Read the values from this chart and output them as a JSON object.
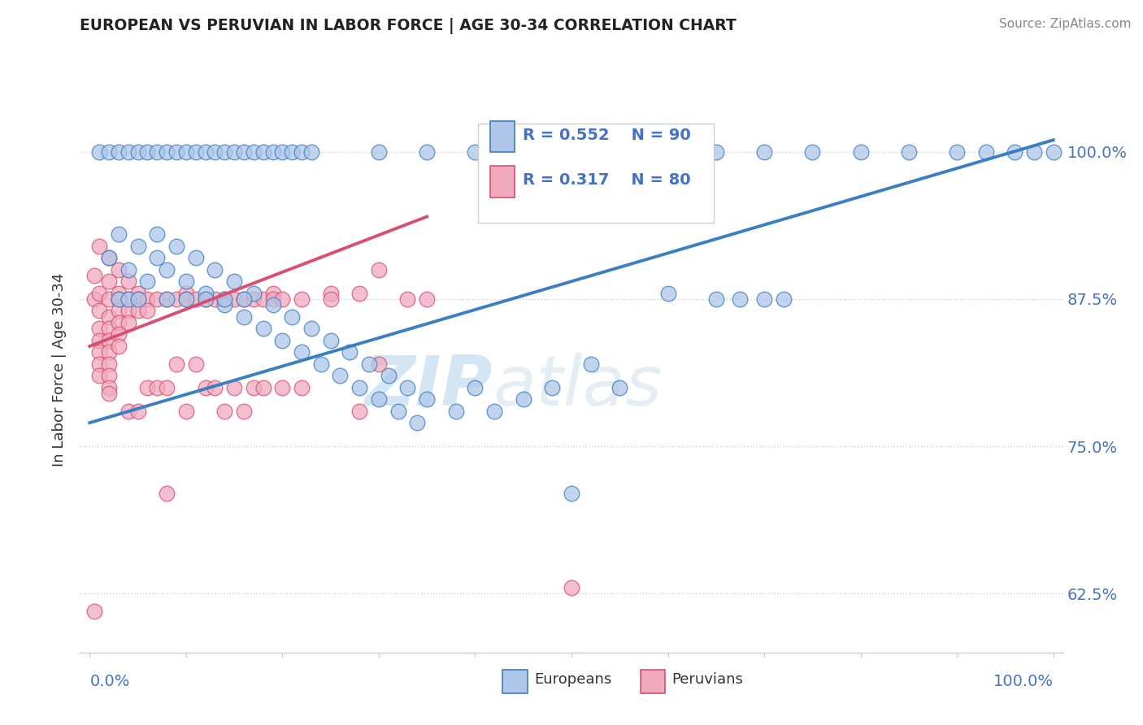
{
  "title": "EUROPEAN VS PERUVIAN IN LABOR FORCE | AGE 30-34 CORRELATION CHART",
  "source": "Source: ZipAtlas.com",
  "ylabel": "In Labor Force | Age 30-34",
  "ytick_labels": [
    "62.5%",
    "75.0%",
    "87.5%",
    "100.0%"
  ],
  "ytick_values": [
    0.625,
    0.75,
    0.875,
    1.0
  ],
  "xlim": [
    -0.01,
    1.01
  ],
  "ylim": [
    0.575,
    1.055
  ],
  "legend_r_european": "R = 0.552",
  "legend_n_european": "N = 90",
  "legend_r_peruvian": "R = 0.317",
  "legend_n_peruvian": "N = 80",
  "european_color": "#aec6e8",
  "peruvian_color": "#f0aabe",
  "trendline_european_color": "#3a7fc1",
  "trendline_peruvian_color": "#d94f70",
  "watermark_zip": "ZIP",
  "watermark_atlas": "atlas",
  "european_points": [
    [
      0.01,
      1.0
    ],
    [
      0.02,
      1.0
    ],
    [
      0.03,
      1.0
    ],
    [
      0.04,
      1.0
    ],
    [
      0.05,
      1.0
    ],
    [
      0.06,
      1.0
    ],
    [
      0.07,
      1.0
    ],
    [
      0.08,
      1.0
    ],
    [
      0.09,
      1.0
    ],
    [
      0.1,
      1.0
    ],
    [
      0.11,
      1.0
    ],
    [
      0.12,
      1.0
    ],
    [
      0.13,
      1.0
    ],
    [
      0.14,
      1.0
    ],
    [
      0.15,
      1.0
    ],
    [
      0.16,
      1.0
    ],
    [
      0.17,
      1.0
    ],
    [
      0.18,
      1.0
    ],
    [
      0.19,
      1.0
    ],
    [
      0.2,
      1.0
    ],
    [
      0.21,
      1.0
    ],
    [
      0.22,
      1.0
    ],
    [
      0.23,
      1.0
    ],
    [
      0.3,
      1.0
    ],
    [
      0.35,
      1.0
    ],
    [
      0.4,
      1.0
    ],
    [
      0.5,
      1.0
    ],
    [
      0.58,
      1.0
    ],
    [
      0.65,
      1.0
    ],
    [
      0.7,
      1.0
    ],
    [
      0.75,
      1.0
    ],
    [
      0.8,
      1.0
    ],
    [
      0.85,
      1.0
    ],
    [
      0.9,
      1.0
    ],
    [
      0.93,
      1.0
    ],
    [
      0.96,
      1.0
    ],
    [
      0.98,
      1.0
    ],
    [
      1.0,
      1.0
    ],
    [
      0.02,
      0.91
    ],
    [
      0.03,
      0.93
    ],
    [
      0.04,
      0.9
    ],
    [
      0.05,
      0.92
    ],
    [
      0.06,
      0.89
    ],
    [
      0.07,
      0.91
    ],
    [
      0.07,
      0.93
    ],
    [
      0.08,
      0.9
    ],
    [
      0.09,
      0.92
    ],
    [
      0.1,
      0.89
    ],
    [
      0.11,
      0.91
    ],
    [
      0.12,
      0.88
    ],
    [
      0.13,
      0.9
    ],
    [
      0.14,
      0.87
    ],
    [
      0.15,
      0.89
    ],
    [
      0.16,
      0.86
    ],
    [
      0.17,
      0.88
    ],
    [
      0.18,
      0.85
    ],
    [
      0.19,
      0.87
    ],
    [
      0.2,
      0.84
    ],
    [
      0.21,
      0.86
    ],
    [
      0.22,
      0.83
    ],
    [
      0.23,
      0.85
    ],
    [
      0.24,
      0.82
    ],
    [
      0.25,
      0.84
    ],
    [
      0.26,
      0.81
    ],
    [
      0.27,
      0.83
    ],
    [
      0.28,
      0.8
    ],
    [
      0.29,
      0.82
    ],
    [
      0.3,
      0.79
    ],
    [
      0.31,
      0.81
    ],
    [
      0.32,
      0.78
    ],
    [
      0.33,
      0.8
    ],
    [
      0.34,
      0.77
    ],
    [
      0.35,
      0.79
    ],
    [
      0.38,
      0.78
    ],
    [
      0.4,
      0.8
    ],
    [
      0.42,
      0.78
    ],
    [
      0.45,
      0.79
    ],
    [
      0.48,
      0.8
    ],
    [
      0.5,
      0.71
    ],
    [
      0.52,
      0.82
    ],
    [
      0.55,
      0.8
    ],
    [
      0.6,
      0.88
    ],
    [
      0.65,
      0.875
    ],
    [
      0.7,
      0.875
    ],
    [
      0.72,
      0.875
    ],
    [
      0.675,
      0.875
    ],
    [
      0.03,
      0.875
    ],
    [
      0.04,
      0.875
    ],
    [
      0.05,
      0.875
    ],
    [
      0.08,
      0.875
    ],
    [
      0.1,
      0.875
    ],
    [
      0.12,
      0.875
    ],
    [
      0.14,
      0.875
    ],
    [
      0.16,
      0.875
    ]
  ],
  "peruvian_points": [
    [
      0.005,
      0.61
    ],
    [
      0.005,
      0.875
    ],
    [
      0.005,
      0.895
    ],
    [
      0.01,
      0.92
    ],
    [
      0.01,
      0.88
    ],
    [
      0.01,
      0.865
    ],
    [
      0.01,
      0.85
    ],
    [
      0.01,
      0.84
    ],
    [
      0.01,
      0.83
    ],
    [
      0.01,
      0.82
    ],
    [
      0.01,
      0.81
    ],
    [
      0.02,
      0.91
    ],
    [
      0.02,
      0.89
    ],
    [
      0.02,
      0.875
    ],
    [
      0.02,
      0.86
    ],
    [
      0.02,
      0.85
    ],
    [
      0.02,
      0.84
    ],
    [
      0.02,
      0.83
    ],
    [
      0.02,
      0.82
    ],
    [
      0.02,
      0.81
    ],
    [
      0.02,
      0.8
    ],
    [
      0.02,
      0.795
    ],
    [
      0.03,
      0.9
    ],
    [
      0.03,
      0.88
    ],
    [
      0.03,
      0.875
    ],
    [
      0.03,
      0.865
    ],
    [
      0.03,
      0.855
    ],
    [
      0.03,
      0.845
    ],
    [
      0.03,
      0.835
    ],
    [
      0.04,
      0.89
    ],
    [
      0.04,
      0.875
    ],
    [
      0.04,
      0.865
    ],
    [
      0.04,
      0.855
    ],
    [
      0.04,
      0.78
    ],
    [
      0.05,
      0.88
    ],
    [
      0.05,
      0.875
    ],
    [
      0.05,
      0.865
    ],
    [
      0.05,
      0.78
    ],
    [
      0.06,
      0.875
    ],
    [
      0.06,
      0.865
    ],
    [
      0.06,
      0.8
    ],
    [
      0.07,
      0.875
    ],
    [
      0.07,
      0.8
    ],
    [
      0.08,
      0.875
    ],
    [
      0.08,
      0.8
    ],
    [
      0.08,
      0.71
    ],
    [
      0.09,
      0.875
    ],
    [
      0.09,
      0.82
    ],
    [
      0.1,
      0.88
    ],
    [
      0.1,
      0.875
    ],
    [
      0.1,
      0.78
    ],
    [
      0.11,
      0.875
    ],
    [
      0.11,
      0.82
    ],
    [
      0.12,
      0.875
    ],
    [
      0.12,
      0.8
    ],
    [
      0.13,
      0.875
    ],
    [
      0.13,
      0.8
    ],
    [
      0.14,
      0.875
    ],
    [
      0.14,
      0.78
    ],
    [
      0.15,
      0.875
    ],
    [
      0.15,
      0.8
    ],
    [
      0.16,
      0.875
    ],
    [
      0.16,
      0.78
    ],
    [
      0.17,
      0.875
    ],
    [
      0.17,
      0.8
    ],
    [
      0.18,
      0.875
    ],
    [
      0.18,
      0.8
    ],
    [
      0.19,
      0.88
    ],
    [
      0.19,
      0.875
    ],
    [
      0.2,
      0.875
    ],
    [
      0.2,
      0.8
    ],
    [
      0.22,
      0.875
    ],
    [
      0.22,
      0.8
    ],
    [
      0.25,
      0.88
    ],
    [
      0.25,
      0.875
    ],
    [
      0.28,
      0.88
    ],
    [
      0.28,
      0.78
    ],
    [
      0.3,
      0.9
    ],
    [
      0.3,
      0.82
    ],
    [
      0.33,
      0.875
    ],
    [
      0.35,
      0.875
    ],
    [
      0.5,
      0.63
    ]
  ],
  "eu_trendline": [
    [
      0.0,
      0.77
    ],
    [
      1.0,
      1.0
    ]
  ],
  "pe_trendline": [
    [
      0.0,
      0.835
    ],
    [
      0.35,
      0.93
    ]
  ]
}
